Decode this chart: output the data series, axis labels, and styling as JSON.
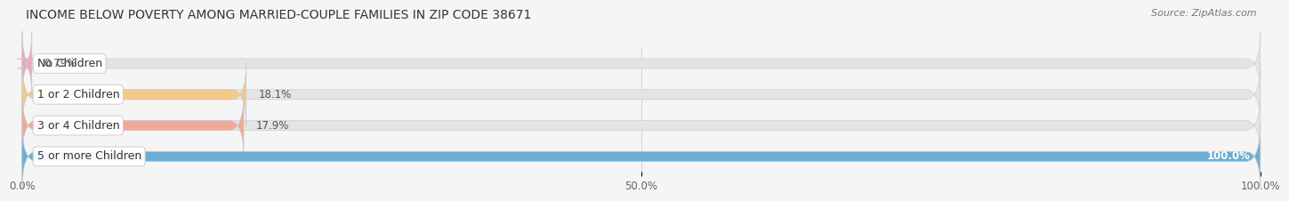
{
  "title": "INCOME BELOW POVERTY AMONG MARRIED-COUPLE FAMILIES IN ZIP CODE 38671",
  "source": "Source: ZipAtlas.com",
  "categories": [
    "No Children",
    "1 or 2 Children",
    "3 or 4 Children",
    "5 or more Children"
  ],
  "values": [
    0.79,
    18.1,
    17.9,
    100.0
  ],
  "bar_colors": [
    "#f4a0b5",
    "#f5c98a",
    "#f0a898",
    "#6aaed6"
  ],
  "value_labels": [
    "0.79%",
    "18.1%",
    "17.9%",
    "100.0%"
  ],
  "xlim": [
    0,
    100
  ],
  "xticks": [
    0.0,
    50.0,
    100.0
  ],
  "xticklabels": [
    "0.0%",
    "50.0%",
    "100.0%"
  ],
  "background_color": "#f5f5f5",
  "bar_background_color": "#e4e4e4",
  "title_fontsize": 10,
  "source_fontsize": 8,
  "label_fontsize": 9,
  "value_fontsize": 8.5,
  "tick_fontsize": 8.5,
  "bar_height": 0.32,
  "bar_spacing": 1.0
}
